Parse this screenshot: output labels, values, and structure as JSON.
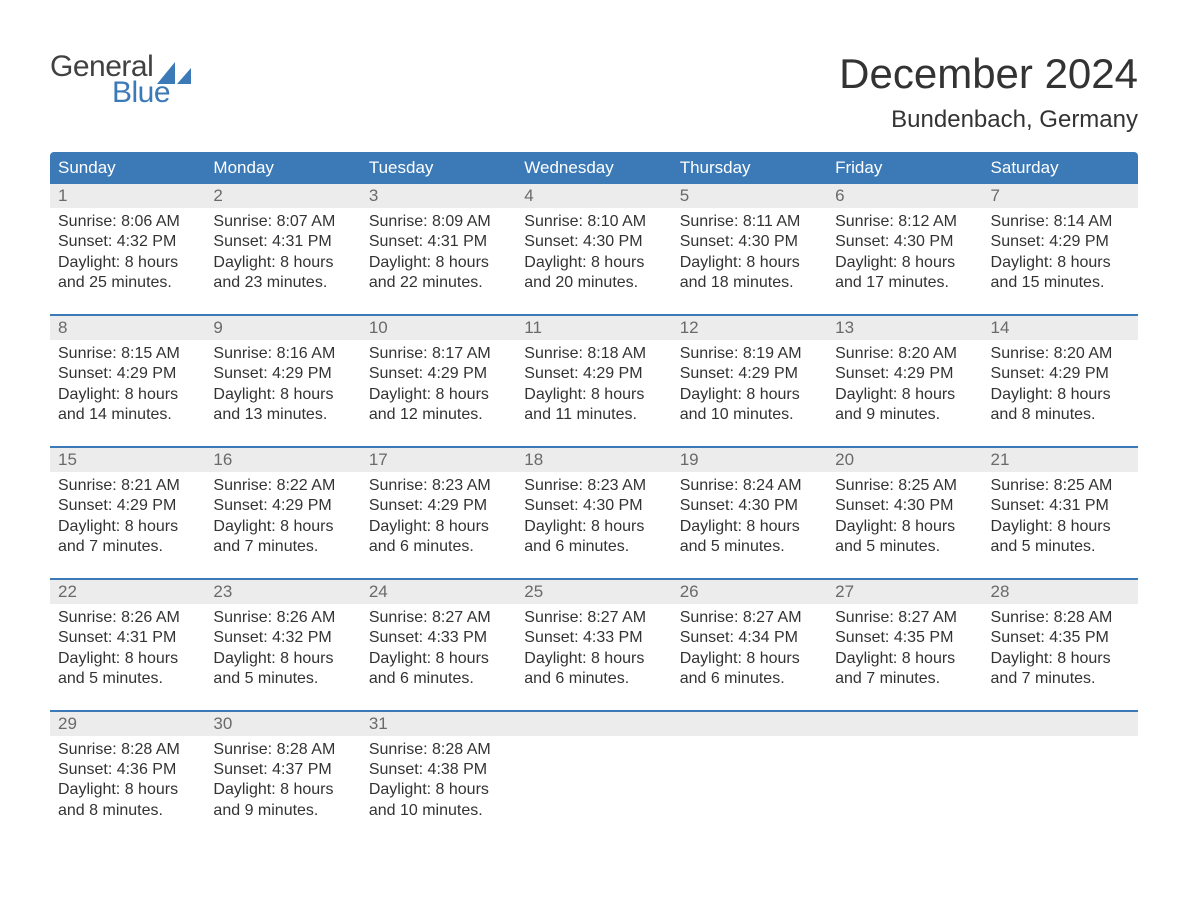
{
  "logo": {
    "word1": "General",
    "word2": "Blue",
    "shape_color": "#3b79b7",
    "word1_color": "#414141"
  },
  "title": "December 2024",
  "location": "Bundenbach, Germany",
  "colors": {
    "header_bg": "#3b79b7",
    "header_text": "#ffffff",
    "daynum_bg": "#ececec",
    "daynum_text": "#6a6a6a",
    "body_text": "#333333",
    "week_border": "#3b79b7",
    "page_bg": "#ffffff"
  },
  "weekdays": [
    "Sunday",
    "Monday",
    "Tuesday",
    "Wednesday",
    "Thursday",
    "Friday",
    "Saturday"
  ],
  "weeks": [
    {
      "days": [
        {
          "n": "1",
          "sunrise": "Sunrise: 8:06 AM",
          "sunset": "Sunset: 4:32 PM",
          "d1": "Daylight: 8 hours",
          "d2": "and 25 minutes."
        },
        {
          "n": "2",
          "sunrise": "Sunrise: 8:07 AM",
          "sunset": "Sunset: 4:31 PM",
          "d1": "Daylight: 8 hours",
          "d2": "and 23 minutes."
        },
        {
          "n": "3",
          "sunrise": "Sunrise: 8:09 AM",
          "sunset": "Sunset: 4:31 PM",
          "d1": "Daylight: 8 hours",
          "d2": "and 22 minutes."
        },
        {
          "n": "4",
          "sunrise": "Sunrise: 8:10 AM",
          "sunset": "Sunset: 4:30 PM",
          "d1": "Daylight: 8 hours",
          "d2": "and 20 minutes."
        },
        {
          "n": "5",
          "sunrise": "Sunrise: 8:11 AM",
          "sunset": "Sunset: 4:30 PM",
          "d1": "Daylight: 8 hours",
          "d2": "and 18 minutes."
        },
        {
          "n": "6",
          "sunrise": "Sunrise: 8:12 AM",
          "sunset": "Sunset: 4:30 PM",
          "d1": "Daylight: 8 hours",
          "d2": "and 17 minutes."
        },
        {
          "n": "7",
          "sunrise": "Sunrise: 8:14 AM",
          "sunset": "Sunset: 4:29 PM",
          "d1": "Daylight: 8 hours",
          "d2": "and 15 minutes."
        }
      ]
    },
    {
      "days": [
        {
          "n": "8",
          "sunrise": "Sunrise: 8:15 AM",
          "sunset": "Sunset: 4:29 PM",
          "d1": "Daylight: 8 hours",
          "d2": "and 14 minutes."
        },
        {
          "n": "9",
          "sunrise": "Sunrise: 8:16 AM",
          "sunset": "Sunset: 4:29 PM",
          "d1": "Daylight: 8 hours",
          "d2": "and 13 minutes."
        },
        {
          "n": "10",
          "sunrise": "Sunrise: 8:17 AM",
          "sunset": "Sunset: 4:29 PM",
          "d1": "Daylight: 8 hours",
          "d2": "and 12 minutes."
        },
        {
          "n": "11",
          "sunrise": "Sunrise: 8:18 AM",
          "sunset": "Sunset: 4:29 PM",
          "d1": "Daylight: 8 hours",
          "d2": "and 11 minutes."
        },
        {
          "n": "12",
          "sunrise": "Sunrise: 8:19 AM",
          "sunset": "Sunset: 4:29 PM",
          "d1": "Daylight: 8 hours",
          "d2": "and 10 minutes."
        },
        {
          "n": "13",
          "sunrise": "Sunrise: 8:20 AM",
          "sunset": "Sunset: 4:29 PM",
          "d1": "Daylight: 8 hours",
          "d2": "and 9 minutes."
        },
        {
          "n": "14",
          "sunrise": "Sunrise: 8:20 AM",
          "sunset": "Sunset: 4:29 PM",
          "d1": "Daylight: 8 hours",
          "d2": "and 8 minutes."
        }
      ]
    },
    {
      "days": [
        {
          "n": "15",
          "sunrise": "Sunrise: 8:21 AM",
          "sunset": "Sunset: 4:29 PM",
          "d1": "Daylight: 8 hours",
          "d2": "and 7 minutes."
        },
        {
          "n": "16",
          "sunrise": "Sunrise: 8:22 AM",
          "sunset": "Sunset: 4:29 PM",
          "d1": "Daylight: 8 hours",
          "d2": "and 7 minutes."
        },
        {
          "n": "17",
          "sunrise": "Sunrise: 8:23 AM",
          "sunset": "Sunset: 4:29 PM",
          "d1": "Daylight: 8 hours",
          "d2": "and 6 minutes."
        },
        {
          "n": "18",
          "sunrise": "Sunrise: 8:23 AM",
          "sunset": "Sunset: 4:30 PM",
          "d1": "Daylight: 8 hours",
          "d2": "and 6 minutes."
        },
        {
          "n": "19",
          "sunrise": "Sunrise: 8:24 AM",
          "sunset": "Sunset: 4:30 PM",
          "d1": "Daylight: 8 hours",
          "d2": "and 5 minutes."
        },
        {
          "n": "20",
          "sunrise": "Sunrise: 8:25 AM",
          "sunset": "Sunset: 4:30 PM",
          "d1": "Daylight: 8 hours",
          "d2": "and 5 minutes."
        },
        {
          "n": "21",
          "sunrise": "Sunrise: 8:25 AM",
          "sunset": "Sunset: 4:31 PM",
          "d1": "Daylight: 8 hours",
          "d2": "and 5 minutes."
        }
      ]
    },
    {
      "days": [
        {
          "n": "22",
          "sunrise": "Sunrise: 8:26 AM",
          "sunset": "Sunset: 4:31 PM",
          "d1": "Daylight: 8 hours",
          "d2": "and 5 minutes."
        },
        {
          "n": "23",
          "sunrise": "Sunrise: 8:26 AM",
          "sunset": "Sunset: 4:32 PM",
          "d1": "Daylight: 8 hours",
          "d2": "and 5 minutes."
        },
        {
          "n": "24",
          "sunrise": "Sunrise: 8:27 AM",
          "sunset": "Sunset: 4:33 PM",
          "d1": "Daylight: 8 hours",
          "d2": "and 6 minutes."
        },
        {
          "n": "25",
          "sunrise": "Sunrise: 8:27 AM",
          "sunset": "Sunset: 4:33 PM",
          "d1": "Daylight: 8 hours",
          "d2": "and 6 minutes."
        },
        {
          "n": "26",
          "sunrise": "Sunrise: 8:27 AM",
          "sunset": "Sunset: 4:34 PM",
          "d1": "Daylight: 8 hours",
          "d2": "and 6 minutes."
        },
        {
          "n": "27",
          "sunrise": "Sunrise: 8:27 AM",
          "sunset": "Sunset: 4:35 PM",
          "d1": "Daylight: 8 hours",
          "d2": "and 7 minutes."
        },
        {
          "n": "28",
          "sunrise": "Sunrise: 8:28 AM",
          "sunset": "Sunset: 4:35 PM",
          "d1": "Daylight: 8 hours",
          "d2": "and 7 minutes."
        }
      ]
    },
    {
      "days": [
        {
          "n": "29",
          "sunrise": "Sunrise: 8:28 AM",
          "sunset": "Sunset: 4:36 PM",
          "d1": "Daylight: 8 hours",
          "d2": "and 8 minutes."
        },
        {
          "n": "30",
          "sunrise": "Sunrise: 8:28 AM",
          "sunset": "Sunset: 4:37 PM",
          "d1": "Daylight: 8 hours",
          "d2": "and 9 minutes."
        },
        {
          "n": "31",
          "sunrise": "Sunrise: 8:28 AM",
          "sunset": "Sunset: 4:38 PM",
          "d1": "Daylight: 8 hours",
          "d2": "and 10 minutes."
        },
        {
          "empty": true
        },
        {
          "empty": true
        },
        {
          "empty": true
        },
        {
          "empty": true
        }
      ]
    }
  ]
}
